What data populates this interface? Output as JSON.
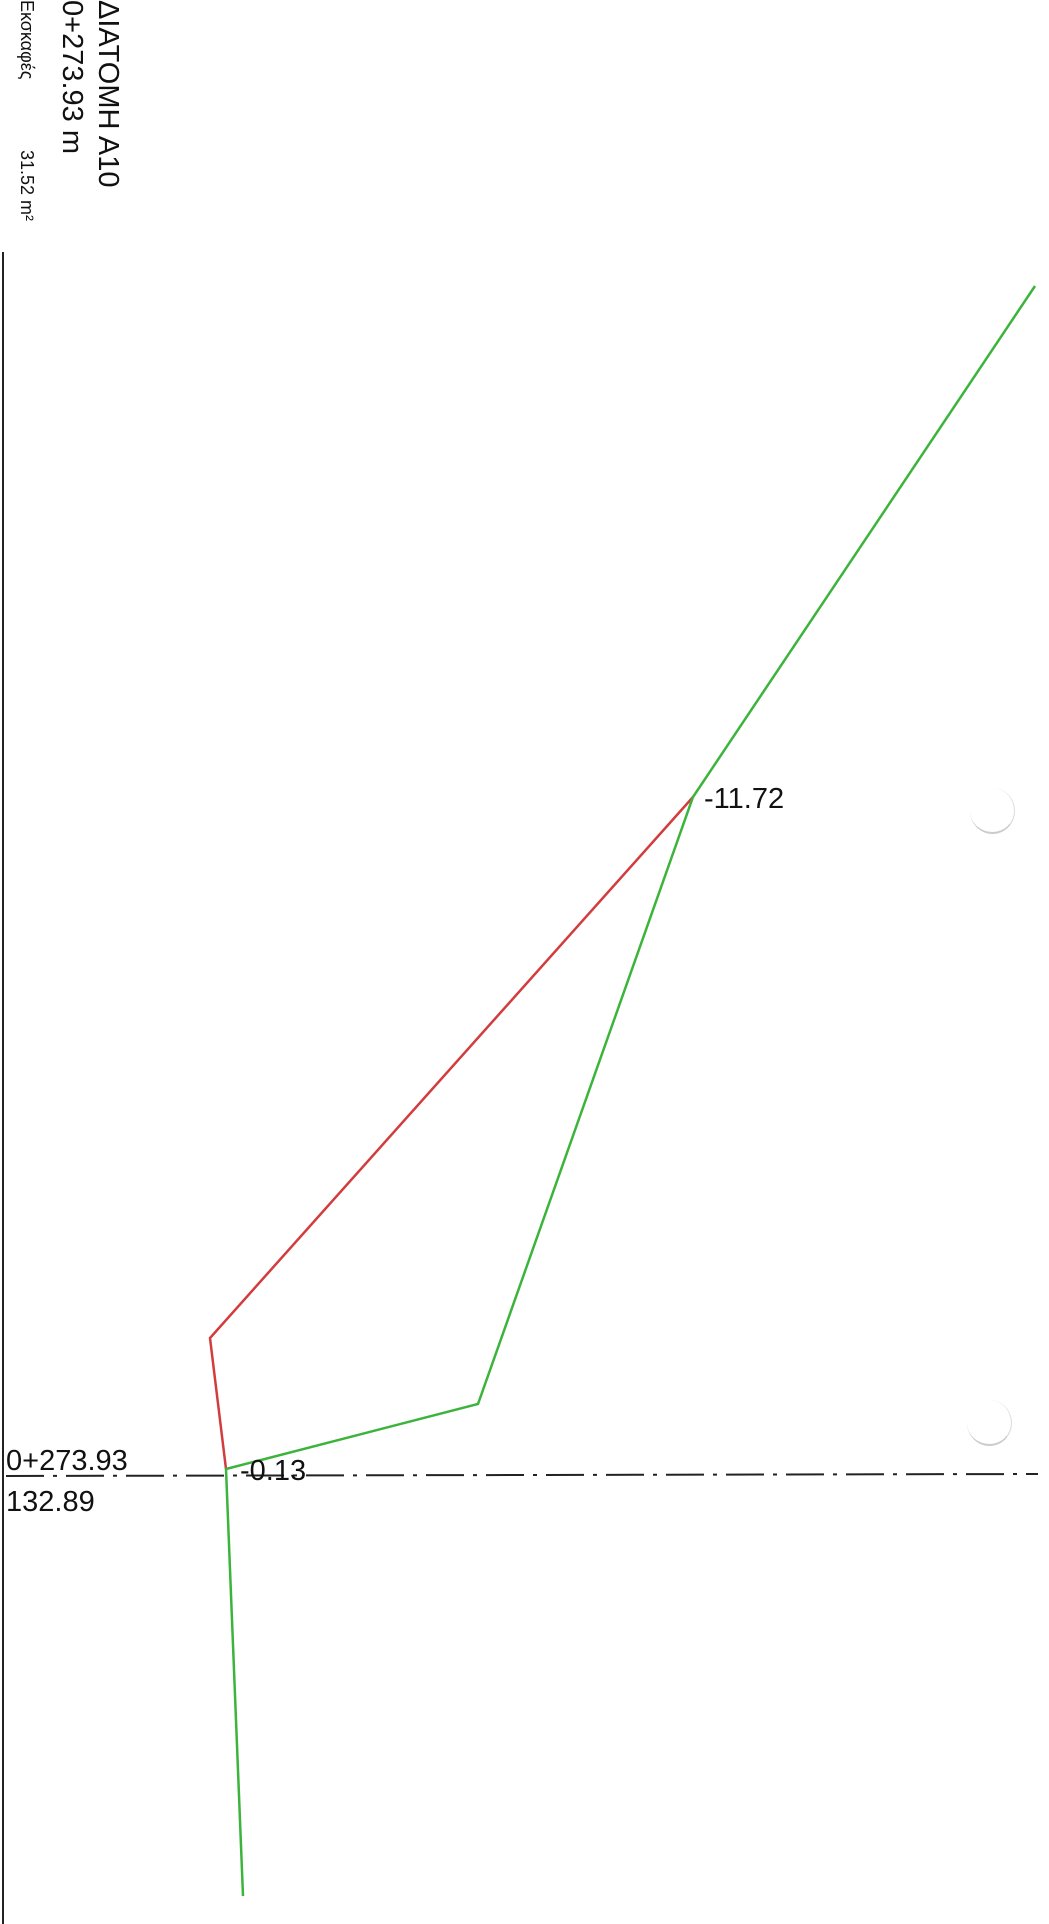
{
  "header": {
    "title": "ΔΙΑΤΟΜΗ Α10",
    "station": "0+273.93 m",
    "excavation_label": "Εκσκαφές",
    "excavation_value": "31.52 m²"
  },
  "axis": {
    "station": "0+273.93",
    "elevation": "132.89"
  },
  "offsets": {
    "right_label": "-11.72",
    "axis_label": "-0.13"
  },
  "colors": {
    "existing_ground": "#d33c3c",
    "design_line": "#3cb43c",
    "axis_line": "#222222",
    "frame": "#222222"
  }
}
